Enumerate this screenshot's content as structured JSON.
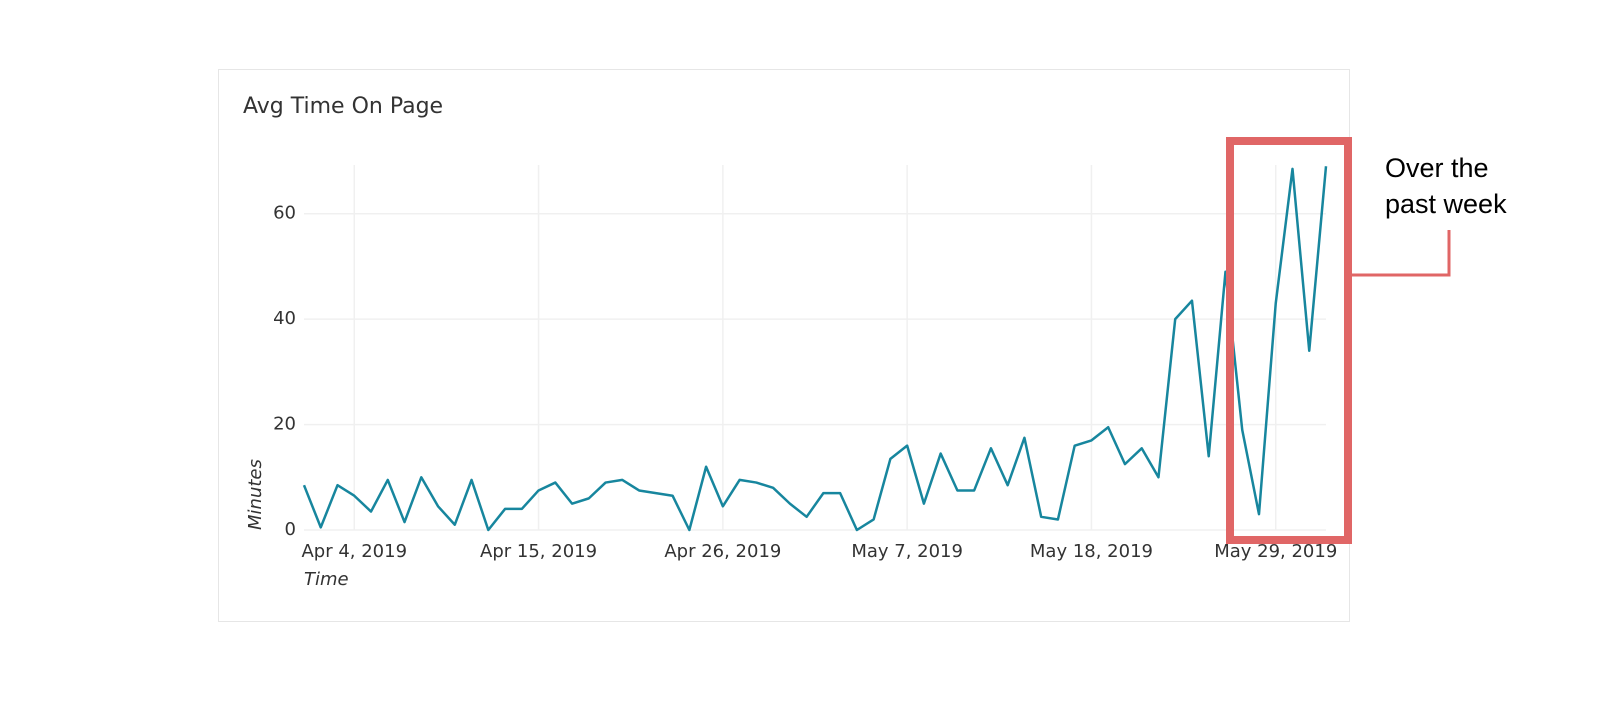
{
  "chart_data": {
    "type": "line",
    "title": "Avg Time On Page",
    "x_label": "Time",
    "y_label": "Minutes",
    "x": [
      "2019-04-01",
      "2019-04-02",
      "2019-04-03",
      "2019-04-04",
      "2019-04-05",
      "2019-04-06",
      "2019-04-07",
      "2019-04-08",
      "2019-04-09",
      "2019-04-10",
      "2019-04-11",
      "2019-04-12",
      "2019-04-13",
      "2019-04-14",
      "2019-04-15",
      "2019-04-16",
      "2019-04-17",
      "2019-04-18",
      "2019-04-19",
      "2019-04-20",
      "2019-04-21",
      "2019-04-22",
      "2019-04-23",
      "2019-04-24",
      "2019-04-25",
      "2019-04-26",
      "2019-04-27",
      "2019-04-28",
      "2019-04-29",
      "2019-04-30",
      "2019-05-01",
      "2019-05-02",
      "2019-05-03",
      "2019-05-04",
      "2019-05-05",
      "2019-05-06",
      "2019-05-07",
      "2019-05-08",
      "2019-05-09",
      "2019-05-10",
      "2019-05-11",
      "2019-05-12",
      "2019-05-13",
      "2019-05-14",
      "2019-05-15",
      "2019-05-16",
      "2019-05-17",
      "2019-05-18",
      "2019-05-19",
      "2019-05-20",
      "2019-05-21",
      "2019-05-22",
      "2019-05-23",
      "2019-05-24",
      "2019-05-25",
      "2019-05-26",
      "2019-05-27",
      "2019-05-28",
      "2019-05-29",
      "2019-05-30",
      "2019-05-31",
      "2019-06-01"
    ],
    "series": [
      {
        "name": "Minutes",
        "color": "#17869e",
        "values": [
          8.5,
          0.5,
          8.5,
          6.5,
          3.5,
          9.5,
          1.5,
          10,
          4.5,
          1,
          9.5,
          0,
          4,
          4,
          7.5,
          9,
          5,
          6,
          9,
          9.5,
          7.5,
          7,
          6.5,
          0,
          12,
          4.5,
          9.5,
          9,
          8,
          5,
          2.5,
          7,
          7,
          0,
          2,
          13.5,
          16,
          5,
          14.5,
          7.5,
          7.5,
          15.5,
          8.5,
          17.5,
          2.5,
          2,
          16,
          17,
          19.5,
          12.5,
          15.5,
          10,
          40,
          43.5,
          14,
          49,
          19,
          3,
          43,
          68.5,
          34,
          69
        ]
      }
    ],
    "xlim": [
      "2019-04-01",
      "2019-06-01"
    ],
    "xticks": [
      {
        "value": "2019-04-04",
        "label": "Apr 4, 2019"
      },
      {
        "value": "2019-04-15",
        "label": "Apr 15, 2019"
      },
      {
        "value": "2019-04-26",
        "label": "Apr 26, 2019"
      },
      {
        "value": "2019-05-07",
        "label": "May 7, 2019"
      },
      {
        "value": "2019-05-18",
        "label": "May 18, 2019"
      },
      {
        "value": "2019-05-29",
        "label": "May 29, 2019"
      }
    ],
    "ylim": [
      0,
      70
    ],
    "yticks": [
      0,
      20,
      40,
      60
    ],
    "grid": true,
    "annotation": "Over the past week"
  }
}
